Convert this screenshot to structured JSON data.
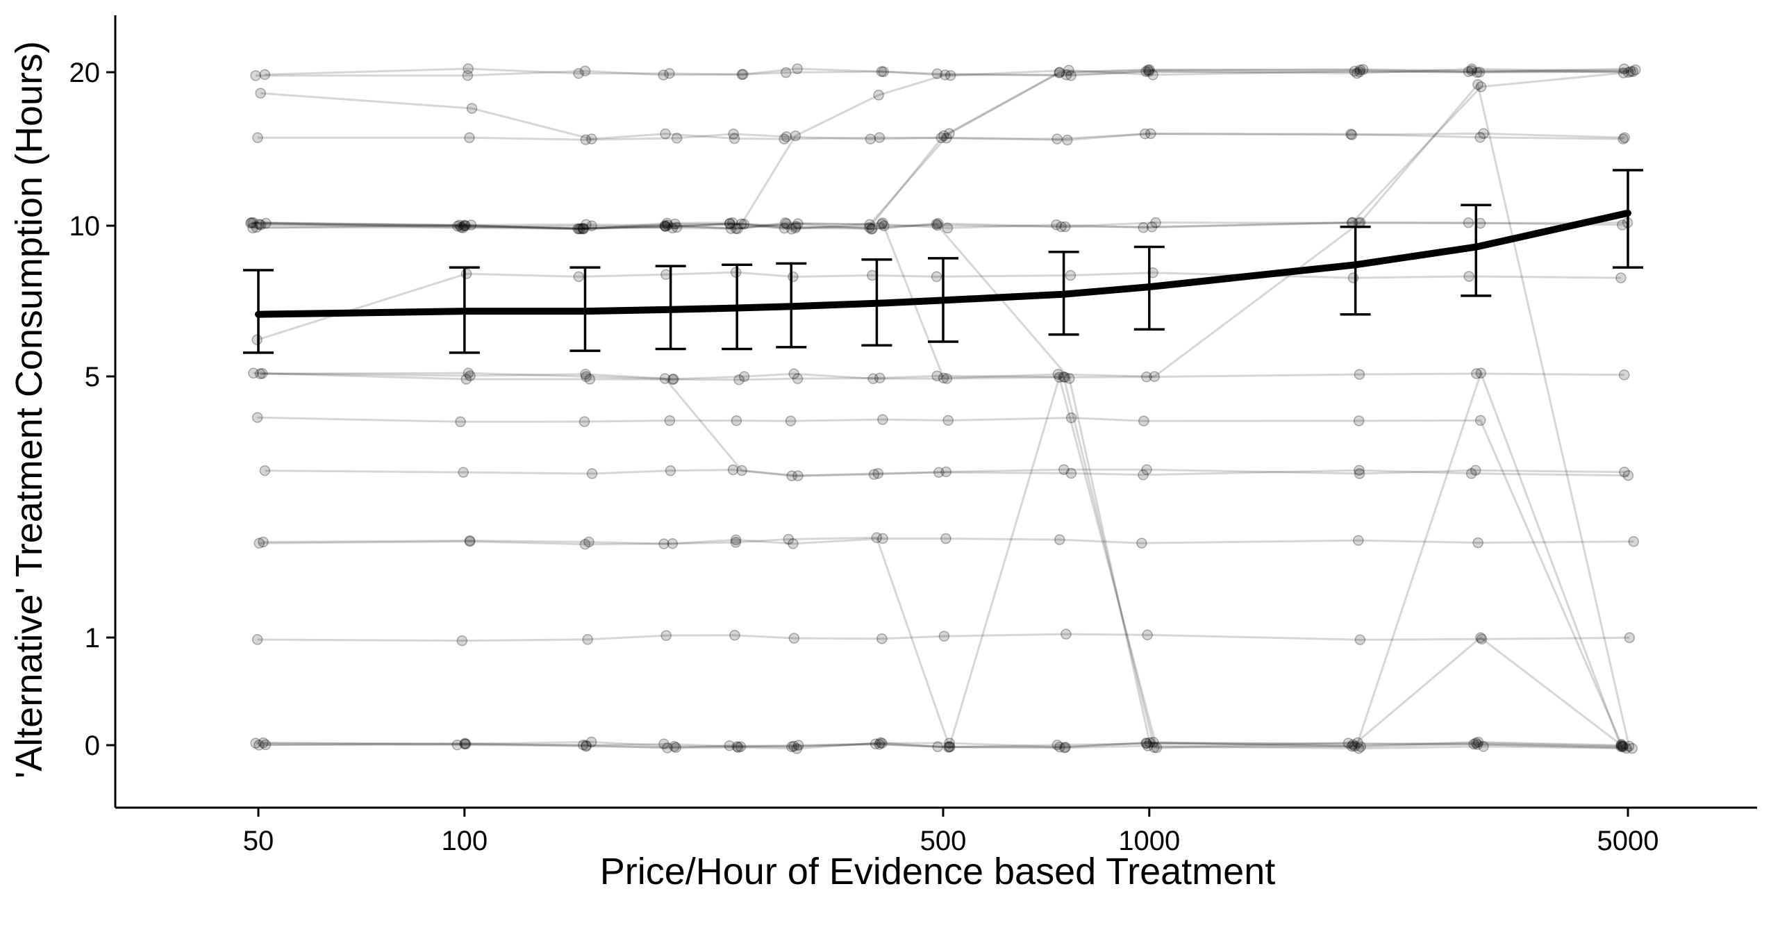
{
  "chart_data": {
    "type": "line",
    "title": "",
    "xlabel": "Price/Hour of Evidence based Treatment",
    "ylabel": "'Alternative' Treatment Consumption (Hours)",
    "x_scale": "log",
    "y_scale": "transformed (labels 0, 1, 5, 10, 20)",
    "xlim": [
      36,
      8000
    ],
    "ylim": [
      -0.1,
      24
    ],
    "x_ticks": [
      50,
      100,
      500,
      1000,
      5000
    ],
    "x_tick_labels": [
      "50",
      "100",
      "500",
      "1000",
      "5000"
    ],
    "y_ticks": [
      0,
      1,
      5,
      10,
      20
    ],
    "y_tick_labels": [
      "0",
      "1",
      "5",
      "10",
      "20"
    ],
    "grid": false,
    "legend": "none",
    "colors": {
      "individual": "#000000",
      "mean_curve": "#000000",
      "error_bar": "#000000"
    },
    "price_levels": [
      50,
      100,
      150,
      200,
      250,
      300,
      400,
      500,
      750,
      1000,
      2000,
      3000,
      5000
    ],
    "series": [
      {
        "name": "",
        "role": "mean curve with error bars",
        "x": [
          50,
          100,
          150,
          200,
          250,
          300,
          400,
          500,
          750,
          1000,
          2000,
          3000,
          5000
        ],
        "y": [
          6.7,
          6.8,
          6.8,
          6.85,
          6.9,
          6.95,
          7.05,
          7.15,
          7.35,
          7.6,
          8.4,
          9.1,
          10.6
        ],
        "y_lower": [
          5.6,
          5.6,
          5.65,
          5.7,
          5.7,
          5.75,
          5.8,
          5.9,
          6.1,
          6.25,
          6.7,
          7.3,
          8.3
        ],
        "y_upper": [
          8.2,
          8.3,
          8.3,
          8.35,
          8.4,
          8.45,
          8.6,
          8.65,
          8.9,
          9.1,
          9.95,
          11.0,
          12.9
        ]
      }
    ],
    "individual_series": [
      [
        10,
        10,
        10,
        10,
        10,
        10,
        10,
        10,
        10,
        10,
        10,
        10,
        10
      ],
      [
        20,
        20,
        20,
        20,
        20,
        20,
        20,
        20,
        20,
        20,
        20,
        20,
        20
      ],
      [
        10,
        10,
        10,
        10,
        10,
        10,
        10,
        15,
        20,
        20,
        20,
        20,
        20
      ],
      [
        10,
        10,
        10,
        10,
        10,
        10,
        10,
        15,
        20,
        20,
        20,
        20,
        20
      ],
      [
        10,
        10,
        10,
        10,
        10,
        10,
        10,
        10,
        10,
        10,
        10,
        19,
        20
      ],
      [
        15,
        15,
        15,
        15,
        15,
        15,
        15,
        15,
        15,
        15,
        15,
        15,
        15
      ],
      [
        5,
        5,
        5,
        5,
        5,
        5,
        5,
        5,
        5,
        5,
        5,
        5,
        5
      ],
      [
        10,
        10,
        10,
        10,
        10,
        10,
        10,
        10,
        5,
        0,
        0,
        0,
        0
      ],
      [
        0,
        0,
        0,
        0,
        0,
        0,
        0,
        0,
        0,
        0,
        0,
        0,
        0
      ],
      [
        0,
        0,
        0,
        0,
        0,
        0,
        0,
        0,
        0,
        0,
        0,
        0,
        0
      ],
      [
        0,
        0,
        0,
        0,
        0,
        0,
        0,
        0,
        0,
        0,
        0,
        0,
        0
      ],
      [
        0,
        0,
        0,
        0,
        0,
        0,
        0,
        0,
        0,
        0,
        0,
        0,
        0
      ],
      [
        5,
        5,
        5,
        5,
        5,
        5,
        5,
        5,
        5,
        0,
        0,
        5,
        0
      ],
      [
        10,
        10,
        10,
        10,
        10,
        10,
        10,
        5,
        5,
        5,
        10,
        19,
        0
      ],
      [
        2,
        2,
        2,
        2,
        2,
        2,
        2,
        0,
        5,
        0,
        0,
        1,
        0
      ],
      [
        1,
        1,
        1,
        1,
        1,
        1,
        1,
        1,
        1,
        1,
        1,
        1,
        1
      ],
      [
        3,
        3,
        3,
        3,
        3,
        3,
        3,
        3,
        3,
        3,
        3,
        3,
        3
      ],
      [
        4,
        4,
        4,
        4,
        4,
        4,
        4,
        4,
        4,
        4,
        4,
        4,
        0
      ],
      [
        18,
        17,
        15,
        15,
        15,
        15,
        15,
        15,
        15,
        15,
        15,
        15,
        15
      ],
      [
        20,
        20,
        20,
        20,
        20,
        20,
        20,
        20,
        20,
        20,
        20,
        20,
        20
      ],
      [
        5,
        5,
        5,
        5,
        3,
        3,
        3,
        3,
        3,
        3,
        3,
        3,
        3
      ],
      [
        2,
        2,
        2,
        2,
        2,
        2,
        2,
        2,
        2,
        2,
        2,
        2,
        2
      ],
      [
        10,
        10,
        10,
        10,
        10,
        10,
        10,
        10,
        10,
        10,
        10,
        10,
        10
      ],
      [
        6,
        8,
        8,
        8,
        8,
        8,
        8,
        8,
        8,
        8,
        8,
        8,
        8
      ],
      [
        10,
        10,
        10,
        10,
        10,
        15,
        18,
        20,
        20,
        20,
        20,
        20,
        20
      ]
    ]
  }
}
